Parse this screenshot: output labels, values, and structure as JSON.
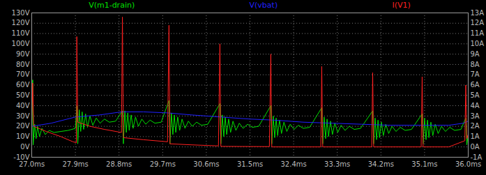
{
  "chart_data": {
    "type": "line",
    "grid": true,
    "xlim": [
      27.0,
      36.0
    ],
    "xticks": [
      {
        "value": 27.0,
        "label": "27.0ms"
      },
      {
        "value": 27.9,
        "label": "27.9ms"
      },
      {
        "value": 28.8,
        "label": "28.8ms"
      },
      {
        "value": 29.7,
        "label": "29.7ms"
      },
      {
        "value": 30.6,
        "label": "30.6ms"
      },
      {
        "value": 31.5,
        "label": "31.5ms"
      },
      {
        "value": 32.4,
        "label": "32.4ms"
      },
      {
        "value": 33.3,
        "label": "33.3ms"
      },
      {
        "value": 34.2,
        "label": "34.2ms"
      },
      {
        "value": 35.1,
        "label": "35.1ms"
      },
      {
        "value": 36.0,
        "label": "36.0ms"
      }
    ],
    "ylim": [
      -10,
      130
    ],
    "yticks": [
      {
        "value": -10,
        "label": "-10V"
      },
      {
        "value": 0,
        "label": "0V"
      },
      {
        "value": 10,
        "label": "10V"
      },
      {
        "value": 20,
        "label": "20V"
      },
      {
        "value": 30,
        "label": "30V"
      },
      {
        "value": 40,
        "label": "40V"
      },
      {
        "value": 50,
        "label": "50V"
      },
      {
        "value": 60,
        "label": "60V"
      },
      {
        "value": 70,
        "label": "70V"
      },
      {
        "value": 80,
        "label": "80V"
      },
      {
        "value": 90,
        "label": "90V"
      },
      {
        "value": 100,
        "label": "100V"
      },
      {
        "value": 110,
        "label": "110V"
      },
      {
        "value": 120,
        "label": "120V"
      },
      {
        "value": 130,
        "label": "130V"
      }
    ],
    "y2lim": [
      -1,
      13
    ],
    "y2ticks": [
      {
        "value": -1,
        "label": "-1A"
      },
      {
        "value": 0,
        "label": "0A"
      },
      {
        "value": 1,
        "label": "1A"
      },
      {
        "value": 2,
        "label": "2A"
      },
      {
        "value": 3,
        "label": "3A"
      },
      {
        "value": 4,
        "label": "4A"
      },
      {
        "value": 5,
        "label": "5A"
      },
      {
        "value": 6,
        "label": "6A"
      },
      {
        "value": 7,
        "label": "7A"
      },
      {
        "value": 8,
        "label": "8A"
      },
      {
        "value": 9,
        "label": "9A"
      },
      {
        "value": 10,
        "label": "10A"
      },
      {
        "value": 11,
        "label": "11A"
      },
      {
        "value": 12,
        "label": "12A"
      },
      {
        "value": 13,
        "label": "13A"
      }
    ],
    "series": [
      {
        "name": "V(m1-drain)",
        "color": "#00e000",
        "axis": "y",
        "x": [
          27.0,
          27.02,
          27.03,
          27.06,
          27.09,
          27.12,
          27.16,
          27.21,
          27.28,
          27.36,
          27.46,
          27.6,
          27.75,
          27.9,
          27.93,
          27.95,
          27.98,
          28.01,
          28.04,
          28.07,
          28.11,
          28.15,
          28.2,
          28.26,
          28.33,
          28.41,
          28.5,
          28.6,
          28.73,
          28.87,
          28.89,
          28.92,
          28.95,
          28.98,
          29.01,
          29.05,
          29.09,
          29.14,
          29.2,
          29.27,
          29.35,
          29.44,
          29.54,
          29.67,
          29.83,
          29.85,
          29.88,
          29.91,
          29.94,
          29.97,
          30.01,
          30.05,
          30.1,
          30.16,
          30.23,
          30.31,
          30.4,
          30.5,
          30.63,
          30.88,
          30.9,
          30.93,
          30.96,
          30.99,
          31.02,
          31.06,
          31.1,
          31.15,
          31.21,
          31.28,
          31.36,
          31.45,
          31.55,
          31.68,
          31.93,
          31.95,
          31.98,
          32.01,
          32.04,
          32.07,
          32.11,
          32.15,
          32.2,
          32.26,
          32.33,
          32.41,
          32.5,
          32.6,
          32.73,
          32.98,
          33.0,
          33.03,
          33.06,
          33.09,
          33.12,
          33.16,
          33.2,
          33.25,
          33.31,
          33.38,
          33.46,
          33.55,
          33.65,
          33.78,
          34.03,
          34.05,
          34.08,
          34.11,
          34.14,
          34.17,
          34.21,
          34.25,
          34.3,
          34.36,
          34.43,
          34.51,
          34.6,
          34.7,
          34.83,
          35.05,
          35.07,
          35.1,
          35.13,
          35.16,
          35.19,
          35.23,
          35.27,
          35.32,
          35.38,
          35.45,
          35.53,
          35.62,
          35.72,
          35.85,
          35.95,
          35.97,
          36.0
        ],
        "values": [
          10,
          65,
          2,
          22,
          8,
          20,
          10,
          18,
          12,
          16,
          14,
          15,
          16,
          18,
          40,
          3,
          36,
          15,
          34,
          17,
          32,
          19,
          30,
          21,
          28,
          23,
          27,
          24,
          25,
          35,
          3,
          35,
          14,
          33,
          16,
          31,
          18,
          29,
          20,
          27,
          22,
          26,
          23,
          24,
          45,
          3,
          33,
          12,
          31,
          14,
          29,
          16,
          27,
          18,
          25,
          20,
          24,
          21,
          22,
          42,
          3,
          31,
          10,
          29,
          12,
          27,
          14,
          25,
          16,
          23,
          18,
          22,
          19,
          20,
          40,
          3,
          30,
          9,
          28,
          11,
          26,
          13,
          24,
          15,
          22,
          17,
          21,
          18,
          19,
          38,
          3,
          29,
          8,
          27,
          10,
          25,
          12,
          23,
          14,
          21,
          16,
          20,
          17,
          18,
          35,
          3,
          28,
          7,
          26,
          9,
          24,
          11,
          22,
          13,
          20,
          15,
          19,
          16,
          17,
          32,
          3,
          28,
          7,
          26,
          9,
          24,
          11,
          22,
          13,
          20,
          15,
          19,
          16,
          17,
          28,
          2,
          12
        ]
      },
      {
        "name": "V(vbat)",
        "color": "#2020ff",
        "axis": "y",
        "x": [
          27.0,
          27.4,
          27.9,
          28.4,
          28.85,
          29.3,
          29.8,
          30.3,
          30.9,
          31.5,
          32.0,
          32.6,
          33.2,
          33.8,
          34.4,
          35.0,
          35.6,
          35.9,
          36.0
        ],
        "values": [
          20,
          23,
          29,
          31,
          34,
          34,
          33,
          31,
          29,
          27,
          26,
          24,
          23,
          22,
          21,
          21,
          21,
          23,
          25
        ]
      },
      {
        "name": "I(V1)",
        "color": "#ff2020",
        "axis": "y2",
        "x": [
          27.0,
          27.02,
          27.04,
          27.3,
          27.6,
          27.85,
          27.92,
          27.93,
          27.95,
          28.2,
          28.5,
          28.85,
          28.87,
          28.89,
          29.3,
          29.8,
          29.83,
          29.85,
          30.3,
          30.85,
          30.88,
          30.9,
          31.9,
          31.93,
          31.95,
          32.96,
          32.98,
          33.0,
          34.01,
          34.03,
          34.05,
          35.03,
          35.05,
          35.07,
          35.6,
          35.93,
          35.95,
          35.97,
          36.0
        ],
        "values": [
          2.2,
          6.2,
          2.0,
          1.5,
          1.0,
          0.5,
          0.4,
          10.7,
          2.4,
          2.0,
          1.7,
          1.4,
          12.6,
          0.9,
          0.7,
          0.5,
          11.8,
          0.3,
          0.2,
          0.1,
          10.0,
          0.05,
          0.03,
          9.0,
          0,
          0,
          7.8,
          0,
          0,
          7.2,
          0,
          0,
          6.8,
          0,
          0,
          0.6,
          6.0,
          0.8,
          1.2
        ]
      }
    ]
  }
}
